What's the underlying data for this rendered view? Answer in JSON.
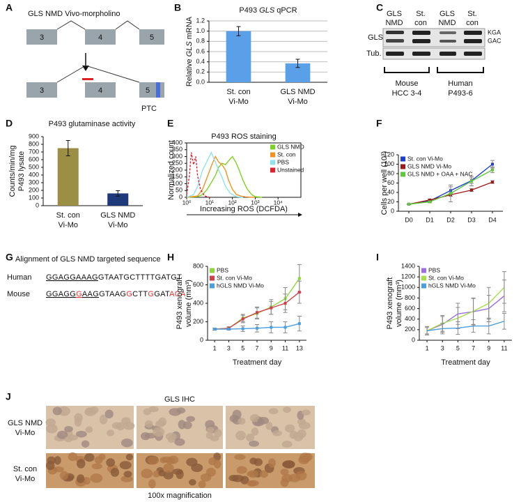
{
  "panel_labels": [
    "A",
    "B",
    "C",
    "D",
    "E",
    "F",
    "G",
    "H",
    "I",
    "J"
  ],
  "panel_a": {
    "title": "GLS NMD Vivo-morpholino",
    "exons_top": [
      "3",
      "4",
      "5"
    ],
    "exons_bottom": [
      "3",
      "4",
      "5"
    ],
    "ptc": "PTC"
  },
  "panel_c": {
    "lanes": [
      [
        "GLS",
        "NMD"
      ],
      [
        "St.",
        "con"
      ],
      [
        "GLS",
        "NMD"
      ],
      [
        "St.",
        "con"
      ]
    ],
    "rows": [
      "GLS",
      "Tub."
    ],
    "bands": [
      "KGA",
      "GAC"
    ],
    "groups": [
      [
        "Mouse",
        "HCC 3-4"
      ],
      [
        "Human",
        "P493-6"
      ]
    ]
  },
  "panel_g": {
    "title": "Alignment of GLS NMD targeted sequence",
    "rows": [
      {
        "species": "Human",
        "segments": [
          {
            "text": "GGAGGAAAG",
            "underline": true
          },
          {
            "text": "GTAATGCTTTTGATGT"
          }
        ]
      },
      {
        "species": "Mouse",
        "segments": [
          {
            "text": "GGAGG",
            "underline": true
          },
          {
            "text": "G",
            "underline": true,
            "color": "#e8312f"
          },
          {
            "text": "AAG",
            "underline": true
          },
          {
            "text": "GTAAG"
          },
          {
            "text": "G",
            "color": "#e8312f"
          },
          {
            "text": "CTT"
          },
          {
            "text": "G",
            "color": "#e8312f"
          },
          {
            "text": "GAT"
          },
          {
            "text": "ACA",
            "color": "#e8312f"
          }
        ]
      }
    ]
  },
  "panel_j": {
    "title": "GLS IHC",
    "rows": [
      [
        "GLS NMD",
        "Vi-Mo"
      ],
      [
        "St. con",
        "Vi-Mo"
      ]
    ],
    "caption": "100x magnification"
  },
  "chart_data": [
    {
      "type": "bar",
      "title": [
        {
          "text": "P493 "
        },
        {
          "text": "GLS",
          "italic": true
        },
        {
          "text": " qPCR"
        }
      ],
      "ylabel": [
        {
          "text": "Relative "
        },
        {
          "text": "GLS",
          "italic": true
        },
        {
          "text": " mRNA"
        }
      ],
      "categories": [
        [
          "St. con",
          "Vi-Mo"
        ],
        [
          "GLS NMD",
          "Vi-Mo"
        ]
      ],
      "values": [
        1.0,
        0.37
      ],
      "errors": [
        0.09,
        0.08
      ],
      "color": "#5aa0e8",
      "ylim": [
        0,
        1.2
      ],
      "yticks": [
        {
          "value": 0,
          "label": "0.0"
        },
        {
          "value": 0.2,
          "label": "0.2"
        },
        {
          "value": 0.4,
          "label": "0.4"
        },
        {
          "value": 0.6,
          "label": "0.6"
        },
        {
          "value": 0.8,
          "label": "0.8"
        },
        {
          "value": 1.0,
          "label": "1.0"
        },
        {
          "value": 1.2,
          "label": "1.2"
        }
      ],
      "grid": true
    },
    {
      "type": "bar",
      "title": "P493 glutaminase activity",
      "ylabel": [
        "Counts/min/mg",
        "P493 lysate"
      ],
      "categories": [
        [
          "St. con",
          "Vi-Mo"
        ],
        [
          "GLS NMD",
          "Vi-Mo"
        ]
      ],
      "values": [
        750,
        160
      ],
      "errors": [
        100,
        35
      ],
      "colors": [
        "#9b8f45",
        "#1f3a7a"
      ],
      "ylim": [
        0,
        900
      ],
      "yticks": [
        0,
        100,
        200,
        300,
        400,
        500,
        600,
        700,
        800,
        900
      ],
      "grid": false
    },
    {
      "type": "line",
      "title": "P493 ROS staining",
      "ylabel": "Normalized count",
      "xlabel": "Increasing ROS (DCFDA)",
      "xscale": "log",
      "xlim": [
        1,
        100000
      ],
      "xticks": [
        {
          "value": 1,
          "label": "10⁰"
        },
        {
          "value": 10,
          "label": "10¹"
        },
        {
          "value": 100,
          "label": "10²"
        },
        {
          "value": 1000,
          "label": "10³"
        },
        {
          "value": 10000,
          "label": "10⁴"
        }
      ],
      "ylim": [
        0,
        400
      ],
      "yticks": [
        0,
        50,
        100,
        150,
        200,
        250,
        300,
        350,
        400
      ],
      "frame": true,
      "legend": "upper right",
      "series": [
        {
          "name": "GLS NMD",
          "color": "#7ed321",
          "x": [
            1,
            3,
            5,
            8,
            12,
            18,
            25,
            35,
            50,
            70,
            100,
            140,
            200,
            300,
            450,
            700,
            1000,
            2000
          ],
          "values": [
            0,
            5,
            20,
            60,
            110,
            160,
            220,
            250,
            240,
            270,
            300,
            260,
            200,
            120,
            60,
            20,
            5,
            0
          ]
        },
        {
          "name": "St. con",
          "color": "#f5921e",
          "x": [
            1,
            3,
            5,
            8,
            12,
            18,
            25,
            35,
            50,
            70,
            100,
            150,
            250,
            400,
            700,
            1000
          ],
          "values": [
            0,
            10,
            60,
            150,
            230,
            300,
            260,
            240,
            200,
            120,
            60,
            20,
            8,
            3,
            1,
            0
          ]
        },
        {
          "name": "PBS",
          "color": "#8fe3f0",
          "x": [
            1,
            2,
            3,
            5,
            8,
            12,
            18,
            25,
            35,
            50,
            80,
            150,
            300
          ],
          "values": [
            0,
            20,
            80,
            200,
            270,
            330,
            260,
            200,
            150,
            80,
            30,
            5,
            0
          ]
        },
        {
          "name": "Unstained",
          "color": "#e02030",
          "dash": true,
          "x": [
            1,
            1.3,
            1.6,
            2,
            2.5,
            3,
            4,
            6,
            10
          ],
          "values": [
            20,
            150,
            330,
            240,
            300,
            160,
            60,
            10,
            0
          ]
        }
      ]
    },
    {
      "type": "line",
      "ylabel": "Cells per well (10³)",
      "categories": [
        "D0",
        "D1",
        "D2",
        "D3",
        "D4"
      ],
      "ylim": [
        0,
        120
      ],
      "yticks": [
        0,
        20,
        40,
        60,
        80,
        100,
        120
      ],
      "legend": "upper left",
      "markers": true,
      "series": [
        {
          "name": "St. con Vi-Mo",
          "color": "#1f3fcf",
          "values": [
            15,
            22,
            44,
            65,
            100
          ],
          "errors": [
            1,
            2,
            8,
            6,
            8
          ]
        },
        {
          "name": "GLS NMD Vi-Mo",
          "color": "#a01818",
          "values": [
            15,
            24,
            35,
            45,
            62
          ],
          "errors": [
            1,
            2,
            3,
            3,
            3
          ]
        },
        {
          "name": "GLS NMD + OAA + NAC",
          "color": "#5cc83a",
          "values": [
            15,
            20,
            38,
            64,
            88
          ],
          "errors": [
            1,
            2,
            18,
            10,
            6
          ]
        }
      ]
    },
    {
      "type": "line",
      "ylabel": [
        "P493 xenograft",
        "volume (mm³)"
      ],
      "xlabel": "Treatment day",
      "xlim": [
        0,
        14
      ],
      "xticks": [
        1,
        3,
        5,
        7,
        9,
        11,
        13
      ],
      "ylim": [
        0,
        800
      ],
      "yticks": [
        0,
        200,
        400,
        600,
        800
      ],
      "legend": "upper left",
      "markers": true,
      "series": [
        {
          "name": "PBS",
          "color": "#8fd63a",
          "x": [
            1,
            3,
            5,
            7,
            9,
            11,
            13
          ],
          "values": [
            120,
            130,
            240,
            290,
            360,
            450,
            670
          ],
          "errors": [
            10,
            15,
            40,
            60,
            80,
            120,
            150
          ]
        },
        {
          "name": "St. con Vi-Mo",
          "color": "#d0404a",
          "x": [
            1,
            3,
            5,
            7,
            9,
            11,
            13
          ],
          "values": [
            120,
            130,
            230,
            300,
            350,
            400,
            520
          ],
          "errors": [
            10,
            15,
            40,
            60,
            70,
            100,
            120
          ]
        },
        {
          "name": "hGLS NMD Vi-Mo",
          "color": "#4a9fe0",
          "x": [
            1,
            3,
            5,
            7,
            9,
            11,
            13
          ],
          "values": [
            120,
            120,
            125,
            130,
            140,
            140,
            180
          ],
          "errors": [
            10,
            10,
            30,
            40,
            60,
            60,
            80
          ]
        }
      ]
    },
    {
      "type": "line",
      "ylabel": [
        "P493 xenograft",
        "volume (mm³)"
      ],
      "xlabel": "Treatment day",
      "xlim": [
        0,
        12
      ],
      "xticks": [
        1,
        3,
        5,
        7,
        9,
        11
      ],
      "ylim": [
        0,
        1400
      ],
      "yticks": [
        0,
        200,
        400,
        600,
        800,
        1000,
        1200,
        1400
      ],
      "legend": "upper left",
      "markers": false,
      "series": [
        {
          "name": "PBS",
          "color": "#9b6fe0",
          "x": [
            1,
            3,
            5,
            7,
            9,
            11
          ],
          "values": [
            180,
            300,
            500,
            540,
            600,
            840
          ],
          "errors": [
            80,
            150,
            200,
            250,
            250,
            300
          ]
        },
        {
          "name": "St. con Vi-Mo",
          "color": "#a6e04a",
          "x": [
            1,
            3,
            5,
            7,
            9,
            11
          ],
          "values": [
            180,
            320,
            420,
            550,
            700,
            1000
          ],
          "errors": [
            80,
            150,
            200,
            250,
            300,
            300
          ]
        },
        {
          "name": "hGLS NMD Vi-Mo",
          "color": "#4a9fe0",
          "x": [
            1,
            3,
            5,
            7,
            9,
            11
          ],
          "values": [
            180,
            220,
            230,
            270,
            270,
            360
          ],
          "errors": [
            60,
            100,
            120,
            120,
            150,
            150
          ]
        }
      ]
    }
  ]
}
